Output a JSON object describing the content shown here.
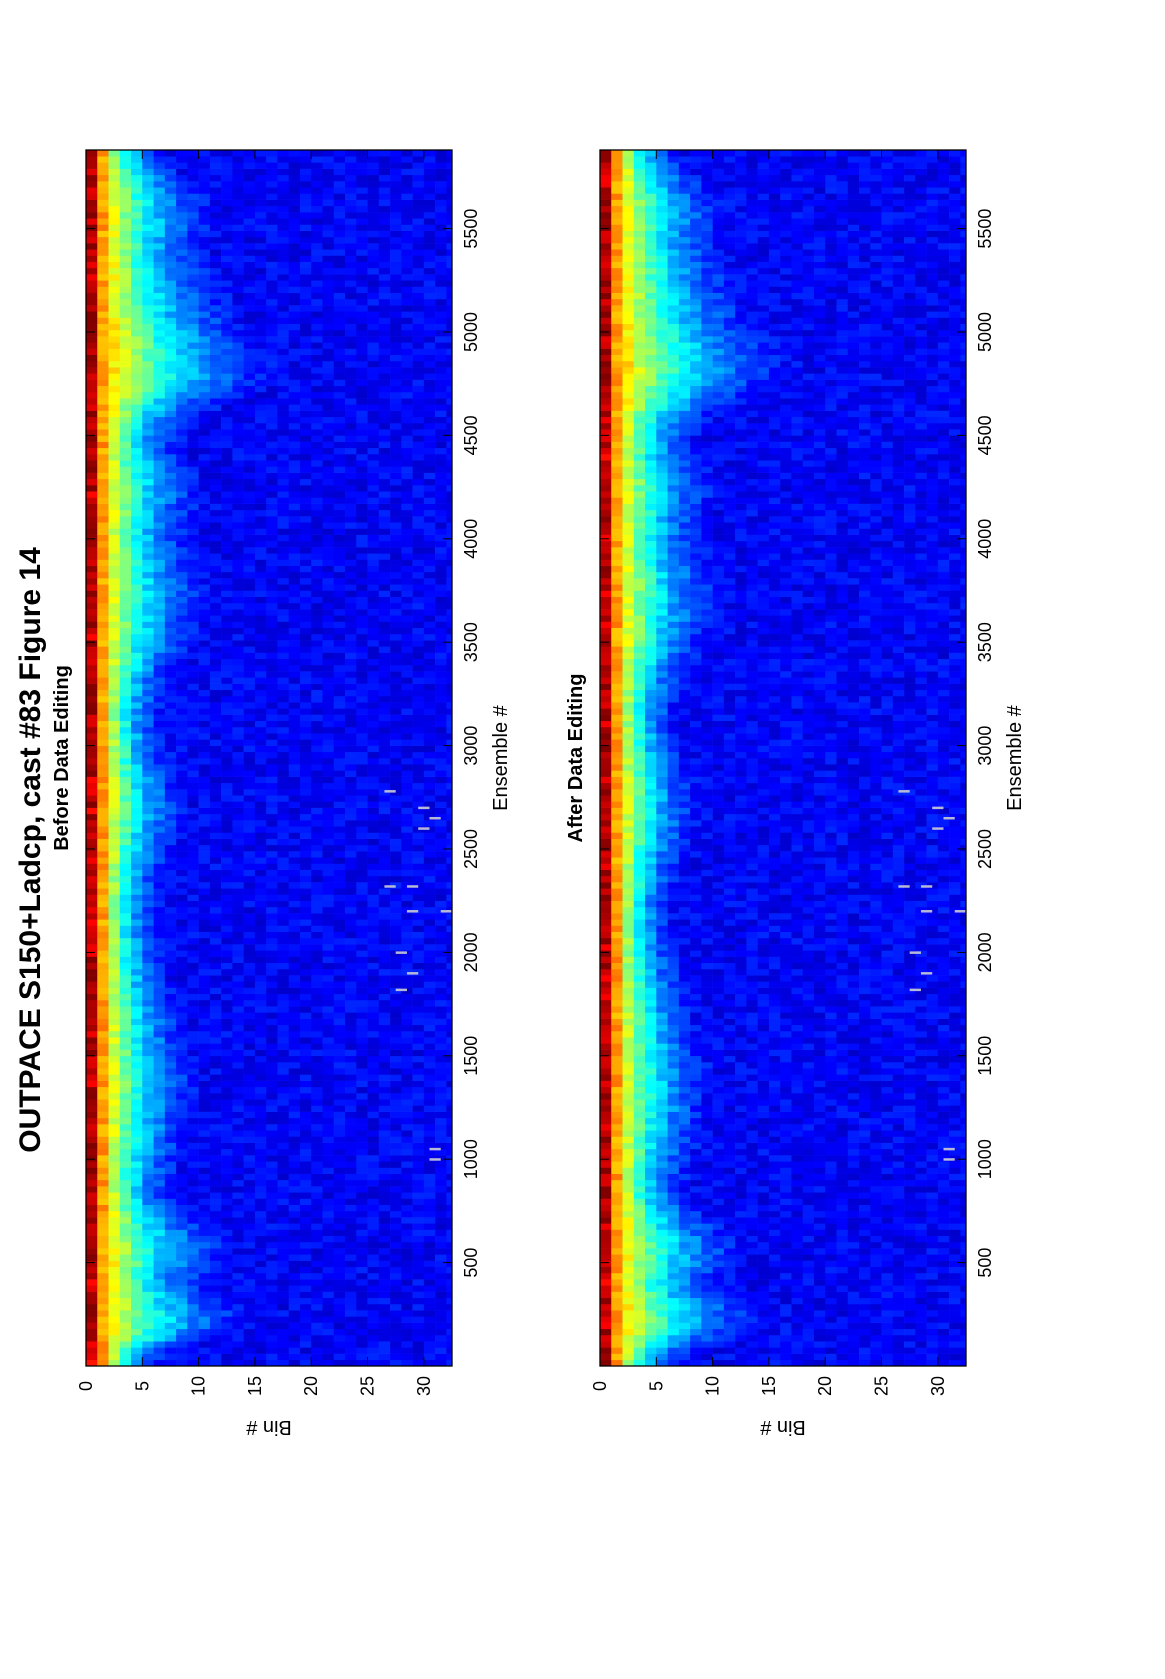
{
  "figure": {
    "title": "OUTPACE S150+Ladcp, cast #83  Figure 14"
  },
  "chart_data": [
    {
      "type": "heatmap",
      "title": "Before Data Editing",
      "xlabel": "Ensemble #",
      "ylabel": "Bin #",
      "xlim": [
        0,
        5880
      ],
      "ylim": [
        0,
        32.5
      ],
      "y_reversed": true,
      "x_ticks": [
        500,
        1000,
        1500,
        2000,
        2500,
        3000,
        3500,
        4000,
        4500,
        5000,
        5500
      ],
      "y_ticks": [
        0,
        5,
        10,
        15,
        20,
        25,
        30
      ],
      "colormap": "jet",
      "grid": false,
      "description_of_values": "relative amplitude; highest (red) in bins 0-3, decreasing with bin number; strong bands near ensembles 250, 550, 4700-5000",
      "masked_segments": [
        {
          "x": 2780,
          "bin": 27
        },
        {
          "x": 2700,
          "bin": 30
        },
        {
          "x": 2650,
          "bin": 31
        },
        {
          "x": 2600,
          "bin": 30
        },
        {
          "x": 2320,
          "bin": 27
        },
        {
          "x": 2320,
          "bin": 29
        },
        {
          "x": 2200,
          "bin": 29
        },
        {
          "x": 2200,
          "bin": 32
        },
        {
          "x": 2000,
          "bin": 28
        },
        {
          "x": 1900,
          "bin": 29
        },
        {
          "x": 1820,
          "bin": 28
        },
        {
          "x": 1050,
          "bin": 31
        },
        {
          "x": 1000,
          "bin": 31
        }
      ]
    },
    {
      "type": "heatmap",
      "title": "After Data Editing",
      "xlabel": "Ensemble #",
      "ylabel": "Bin #",
      "xlim": [
        0,
        5880
      ],
      "ylim": [
        0,
        32.5
      ],
      "y_reversed": true,
      "x_ticks": [
        500,
        1000,
        1500,
        2000,
        2500,
        3000,
        3500,
        4000,
        4500,
        5000,
        5500
      ],
      "y_ticks": [
        0,
        5,
        10,
        15,
        20,
        25,
        30
      ],
      "colormap": "jet",
      "grid": false,
      "description_of_values": "relative amplitude after editing; same structure as before editing",
      "masked_segments": [
        {
          "x": 2780,
          "bin": 27
        },
        {
          "x": 2700,
          "bin": 30
        },
        {
          "x": 2650,
          "bin": 31
        },
        {
          "x": 2600,
          "bin": 30
        },
        {
          "x": 2320,
          "bin": 27
        },
        {
          "x": 2320,
          "bin": 29
        },
        {
          "x": 2200,
          "bin": 29
        },
        {
          "x": 2200,
          "bin": 32
        },
        {
          "x": 2000,
          "bin": 28
        },
        {
          "x": 1900,
          "bin": 29
        },
        {
          "x": 1820,
          "bin": 28
        },
        {
          "x": 1050,
          "bin": 31
        },
        {
          "x": 1000,
          "bin": 31
        }
      ]
    }
  ]
}
